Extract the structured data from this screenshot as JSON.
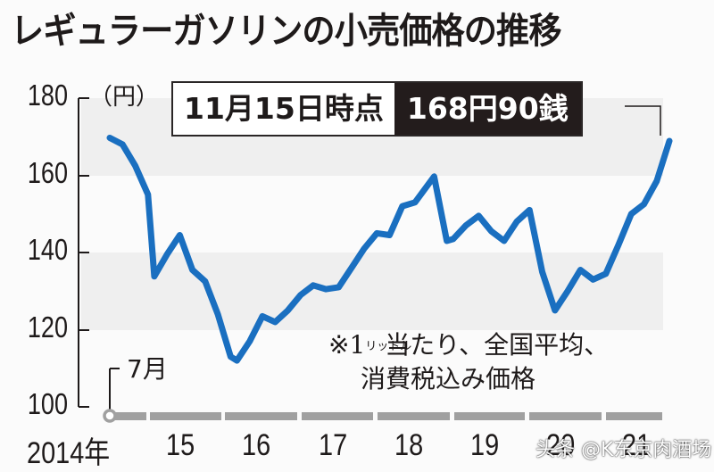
{
  "title": "レギュラーガソリンの小売価格の推移",
  "unit_label": "（円）",
  "callout": {
    "date_label": "11月15日時点",
    "price_label": "168円90銭"
  },
  "start_month_label": "7月",
  "note": {
    "prefix": "※1",
    "liter_small": "リットル",
    "line1_rest": "当たり、全国平均、",
    "line2": "消費税込み価格"
  },
  "watermark": "头条 @K东京肉酒场",
  "colors": {
    "line": "#1a6fc0",
    "band": "#efefef",
    "axis": "#1e1a1a",
    "timeline": "#a0a0a0",
    "callout_dark": "#231c1c"
  },
  "y_ticks": [
    "180",
    "160",
    "140",
    "120",
    "100"
  ],
  "x_ticks": [
    "2014年",
    "15",
    "16",
    "17",
    "18",
    "19",
    "20",
    "21"
  ],
  "chart_data": {
    "type": "line",
    "title": "レギュラーガソリンの小売価格の推移",
    "xlabel": "",
    "ylabel": "円",
    "ylim": [
      100,
      180
    ],
    "y_ticks": [
      100,
      120,
      140,
      160,
      180
    ],
    "x_ticks": [
      "2014年",
      "15",
      "16",
      "17",
      "18",
      "19",
      "20",
      "21"
    ],
    "grid": "alternating horizontal bands (160-180, 120-140)",
    "legend": "none",
    "annotations": [
      "11月15日時点 168円90銭",
      "7月 (start: 2014-07)",
      "※1リットル当たり、全国平均、消費税込み価格"
    ],
    "series": [
      {
        "name": "レギュラーガソリン小売価格",
        "x": [
          "2014-07",
          "2014-09",
          "2014-11",
          "2015-01",
          "2015-02",
          "2015-04",
          "2015-06",
          "2015-08",
          "2015-10",
          "2015-12",
          "2016-02",
          "2016-03",
          "2016-05",
          "2016-07",
          "2016-09",
          "2016-11",
          "2017-01",
          "2017-03",
          "2017-05",
          "2017-07",
          "2017-09",
          "2017-11",
          "2018-01",
          "2018-03",
          "2018-05",
          "2018-07",
          "2018-10",
          "2018-12",
          "2019-01",
          "2019-03",
          "2019-05",
          "2019-07",
          "2019-09",
          "2019-11",
          "2020-01",
          "2020-03",
          "2020-05",
          "2020-07",
          "2020-09",
          "2020-11",
          "2021-01",
          "2021-03",
          "2021-05",
          "2021-07",
          "2021-09",
          "2021-11"
        ],
        "values": [
          169.7,
          168.0,
          162.5,
          155.0,
          133.8,
          139.5,
          144.5,
          135.5,
          132.5,
          124.0,
          113.0,
          112.0,
          117.0,
          123.5,
          122.0,
          125.0,
          129.0,
          131.5,
          130.5,
          131.0,
          136.0,
          141.0,
          145.0,
          144.5,
          152.0,
          153.0,
          159.7,
          143.0,
          143.5,
          147.0,
          149.5,
          145.5,
          143.0,
          148.0,
          151.0,
          135.0,
          125.0,
          130.0,
          135.5,
          133.0,
          134.5,
          142.0,
          150.0,
          152.5,
          158.5,
          168.9
        ]
      }
    ]
  }
}
